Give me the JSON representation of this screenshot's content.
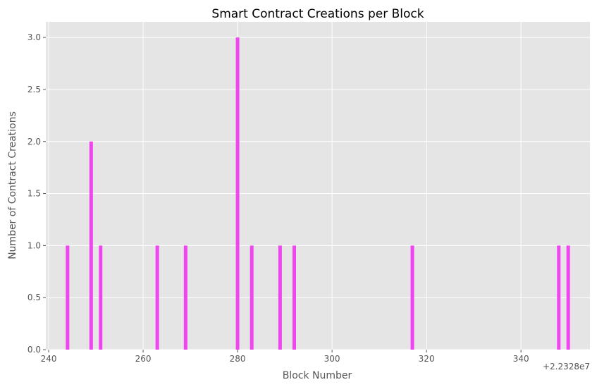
{
  "chart_data": {
    "type": "bar",
    "title": "Smart Contract Creations per Block",
    "xlabel": "Block Number",
    "ylabel": "Number of Contract Creations",
    "x_offset_label": "+2.2328e7",
    "x": [
      244,
      249,
      251,
      263,
      269,
      280,
      283,
      289,
      292,
      317,
      348,
      350
    ],
    "values": [
      1,
      2,
      1,
      1,
      1,
      3,
      1,
      1,
      1,
      1,
      1,
      1
    ],
    "xlim": [
      239.4,
      354.6
    ],
    "ylim": [
      0,
      3.15
    ],
    "x_ticks": [
      240,
      260,
      280,
      300,
      320,
      340
    ],
    "y_ticks": [
      0.0,
      0.5,
      1.0,
      1.5,
      2.0,
      2.5,
      3.0
    ],
    "y_tick_labels": [
      "0.0",
      "0.5",
      "1.0",
      "1.5",
      "2.0",
      "2.5",
      "3.0"
    ],
    "bar_color": "#f046f0",
    "background_color": "#e5e5e5",
    "grid": true
  }
}
